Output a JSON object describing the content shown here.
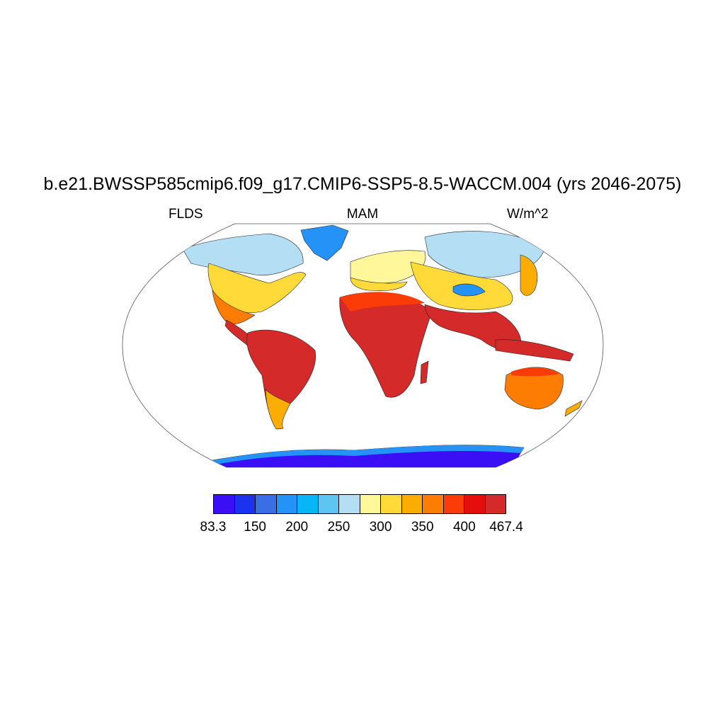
{
  "header": {
    "title": "b.e21.BWSSP585cmip6.f09_g17.CMIP6-SSP5-8.5-WACCM.004 (yrs 2046-2075)",
    "left_label": "FLDS",
    "center_label": "MAM",
    "right_label": "W/m^2"
  },
  "colorbar": {
    "colors": [
      "#3a0ff5",
      "#1b32ef",
      "#3a6ee6",
      "#2592f7",
      "#08b6f8",
      "#5ec4f2",
      "#b3def4",
      "#fff799",
      "#ffda38",
      "#fcad03",
      "#fc7d02",
      "#fb3c08",
      "#e60d0d",
      "#d42a2a"
    ],
    "tick_labels": [
      "83.3",
      "150",
      "200",
      "250",
      "300",
      "350",
      "400",
      "467.4"
    ]
  }
}
